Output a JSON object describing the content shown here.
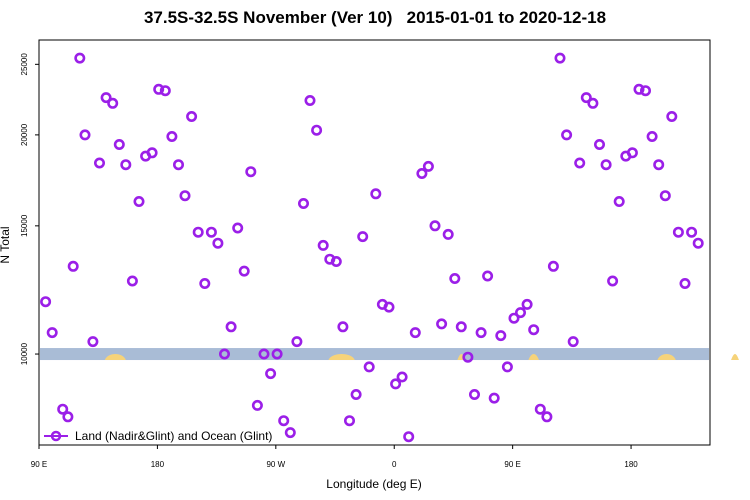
{
  "chart_data": {
    "type": "scatter",
    "title": "37.5S-32.5S November (Ver 10)   2015-01-01 to 2020-12-18",
    "xlabel": "Longitude (deg E)",
    "ylabel": "N Total",
    "y_scale": "log",
    "ylim": [
      7500,
      27000
    ],
    "x_ticks": [
      "90 E",
      "180",
      "90 W",
      "0",
      "90 E",
      "180"
    ],
    "y_ticks": [
      10000,
      15000,
      20000,
      25000
    ],
    "grid": false,
    "legend_position": "bottom-left",
    "series": [
      {
        "name": "Land (Nadir&Glint) and Ocean (Glint)",
        "color": "#9b1fe8",
        "marker": "open-circle",
        "x": [
          95,
          100,
          108,
          112,
          116,
          121,
          125,
          131,
          136,
          141,
          146,
          151,
          156,
          161,
          166,
          171,
          176,
          181,
          186,
          191,
          196,
          201,
          206,
          211,
          216,
          221,
          226,
          231,
          236,
          241,
          246,
          251,
          256,
          261,
          266,
          271,
          276,
          281,
          286,
          291,
          296,
          301,
          306,
          311,
          316,
          321,
          326,
          331,
          336,
          341,
          346,
          351,
          356,
          361,
          366,
          371,
          376,
          381,
          386,
          391,
          396,
          401,
          406,
          411,
          416,
          421,
          426,
          431,
          436,
          441,
          446,
          451,
          456,
          461,
          466,
          471,
          476,
          481,
          486,
          491,
          496,
          501,
          506,
          511,
          516,
          521,
          526,
          531,
          536,
          541,
          546,
          551,
          556,
          561,
          566,
          571,
          576,
          581,
          586,
          591
        ],
        "y": [
          11800,
          10700,
          8400,
          8200,
          13200,
          25500,
          20000,
          10400,
          18300,
          22500,
          22100,
          19400,
          18200,
          12600,
          16200,
          18700,
          18900,
          23100,
          23000,
          19900,
          18200,
          16500,
          21200,
          14700,
          12500,
          14700,
          14200,
          10000,
          10900,
          14900,
          13000,
          17800,
          8500,
          10000,
          9400,
          10000,
          8100,
          7800,
          10400,
          16100,
          22300,
          20300,
          14100,
          13500,
          13400,
          10900,
          8100,
          8800,
          14500,
          9600,
          16600,
          11700,
          11600,
          9100,
          9300,
          7700,
          10700,
          17700,
          18100,
          15000,
          11000,
          14600,
          12700,
          10900,
          9900,
          8800,
          10700,
          12800,
          8700,
          10600,
          9600,
          11200,
          11400,
          11700,
          10800,
          8400,
          8200,
          13200,
          25500,
          20000,
          10400,
          18300,
          22500,
          22100,
          19400,
          18200,
          12600,
          16200,
          18700,
          18900,
          23100,
          23000,
          19900,
          18200,
          16500,
          21200,
          14700,
          12500,
          14700,
          14200
        ]
      }
    ]
  }
}
